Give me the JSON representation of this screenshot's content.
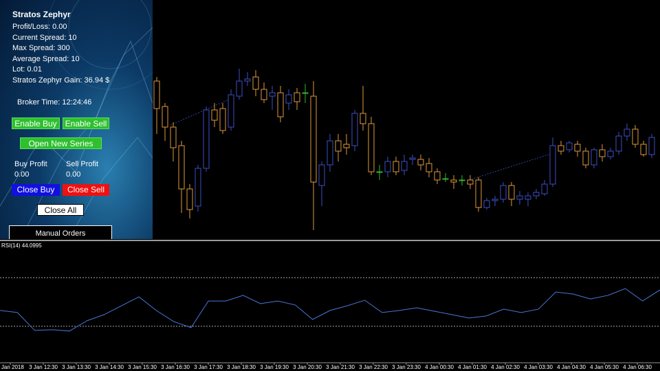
{
  "panel": {
    "title": "Stratos Zephyr",
    "stats": [
      "Profit/Loss: 0.00",
      "Current Spread: 10",
      "Max Spread: 300",
      "Average Spread: 10",
      "Lot: 0.01",
      "Stratos Zephyr Gain:  36.94 $"
    ],
    "broker_time": "Broker Time: 12:24:46",
    "enable_buy": "Enable Buy",
    "enable_sell": "Enable Sell",
    "open_new_series": "Open New Series",
    "buy_profit": {
      "label": "Buy Profit",
      "value": "0.00"
    },
    "sell_profit": {
      "label": "Sell Profit",
      "value": "0.00"
    },
    "close_buy": "Close Buy",
    "close_sell": "Close Sell",
    "close_all": "Close All",
    "manual_orders": "Manual Orders"
  },
  "chart_data": {
    "type": "candlestick",
    "ylim": [
      0,
      350
    ],
    "colors": {
      "up": "#3b4fc4",
      "down": "#e09a3a",
      "flat": "#2fb82f"
    },
    "candles": [
      [
        232,
        238,
        155,
        192
      ],
      [
        195,
        200,
        145,
        165
      ],
      [
        165,
        172,
        115,
        135
      ],
      [
        138,
        145,
        40,
        75
      ],
      [
        75,
        82,
        32,
        45
      ],
      [
        50,
        110,
        42,
        105
      ],
      [
        105,
        195,
        100,
        190
      ],
      [
        190,
        200,
        165,
        175
      ],
      [
        192,
        200,
        155,
        160
      ],
      [
        165,
        220,
        160,
        212
      ],
      [
        210,
        250,
        205,
        232
      ],
      [
        232,
        245,
        225,
        235
      ],
      [
        238,
        248,
        210,
        220
      ],
      [
        220,
        230,
        200,
        205
      ],
      [
        210,
        225,
        190,
        215
      ],
      [
        215,
        225,
        172,
        180
      ],
      [
        200,
        220,
        190,
        212
      ],
      [
        215,
        222,
        190,
        202
      ],
      [
        215,
        228,
        200,
        215
      ],
      [
        210,
        232,
        15,
        85
      ],
      [
        80,
        115,
        50,
        110
      ],
      [
        110,
        155,
        100,
        145
      ],
      [
        145,
        155,
        115,
        130
      ],
      [
        140,
        155,
        125,
        135
      ],
      [
        138,
        190,
        130,
        185
      ],
      [
        185,
        225,
        160,
        170
      ],
      [
        170,
        180,
        95,
        100
      ],
      [
        100,
        110,
        88,
        100
      ],
      [
        100,
        122,
        92,
        115
      ],
      [
        115,
        122,
        95,
        100
      ],
      [
        102,
        125,
        95,
        115
      ],
      [
        118,
        125,
        110,
        120
      ],
      [
        118,
        125,
        102,
        110
      ],
      [
        112,
        120,
        92,
        100
      ],
      [
        100,
        105,
        82,
        88
      ],
      [
        90,
        98,
        85,
        90
      ],
      [
        88,
        95,
        75,
        85
      ],
      [
        88,
        95,
        80,
        88
      ],
      [
        88,
        95,
        75,
        82
      ],
      [
        88,
        92,
        42,
        48
      ],
      [
        48,
        62,
        45,
        58
      ],
      [
        58,
        65,
        50,
        60
      ],
      [
        60,
        85,
        55,
        80
      ],
      [
        80,
        85,
        50,
        60
      ],
      [
        60,
        72,
        52,
        65
      ],
      [
        60,
        70,
        50,
        65
      ],
      [
        65,
        75,
        60,
        70
      ],
      [
        68,
        88,
        65,
        82
      ],
      [
        82,
        150,
        78,
        138
      ],
      [
        138,
        145,
        125,
        130
      ],
      [
        132,
        145,
        128,
        142
      ],
      [
        140,
        145,
        122,
        130
      ],
      [
        130,
        135,
        105,
        110
      ],
      [
        110,
        135,
        105,
        132
      ],
      [
        132,
        140,
        115,
        122
      ],
      [
        122,
        135,
        118,
        130
      ],
      [
        130,
        158,
        125,
        152
      ],
      [
        152,
        170,
        145,
        162
      ],
      [
        162,
        168,
        135,
        140
      ],
      [
        140,
        145,
        122,
        125
      ],
      [
        125,
        155,
        120,
        150
      ]
    ],
    "rsi": {
      "label": "RSI(14) 44.0995",
      "color": "#4a78d8",
      "ylim": [
        0,
        100
      ],
      "levels": [
        70,
        30
      ],
      "values": [
        43,
        41.3,
        26.6,
        27.2,
        26.1,
        34.5,
        39.6,
        46.9,
        54.2,
        43,
        33.9,
        28.9,
        50.8,
        50.8,
        55.4,
        48.6,
        50.8,
        47.5,
        35.6,
        43,
        46.9,
        51.4,
        41.3,
        43,
        45.2,
        42.4,
        39.6,
        36.8,
        38.5,
        44.1,
        41.3,
        44.1,
        58.2,
        56.5,
        52.5,
        55.4,
        61,
        50.8,
        59.9
      ]
    },
    "time_labels": [
      "3 Jan 2018",
      "3 Jan 12:30",
      "3 Jan 13:30",
      "3 Jan 14:30",
      "3 Jan 15:30",
      "3 Jan 16:30",
      "3 Jan 17:30",
      "3 Jan 18:30",
      "3 Jan 19:30",
      "3 Jan 20:30",
      "3 Jan 21:30",
      "3 Jan 22:30",
      "3 Jan 23:30",
      "4 Jan 00:30",
      "4 Jan 01:30",
      "4 Jan 02:30",
      "4 Jan 03:30",
      "4 Jan 04:30",
      "4 Jan 05:30",
      "4 Jan 06:30"
    ]
  }
}
